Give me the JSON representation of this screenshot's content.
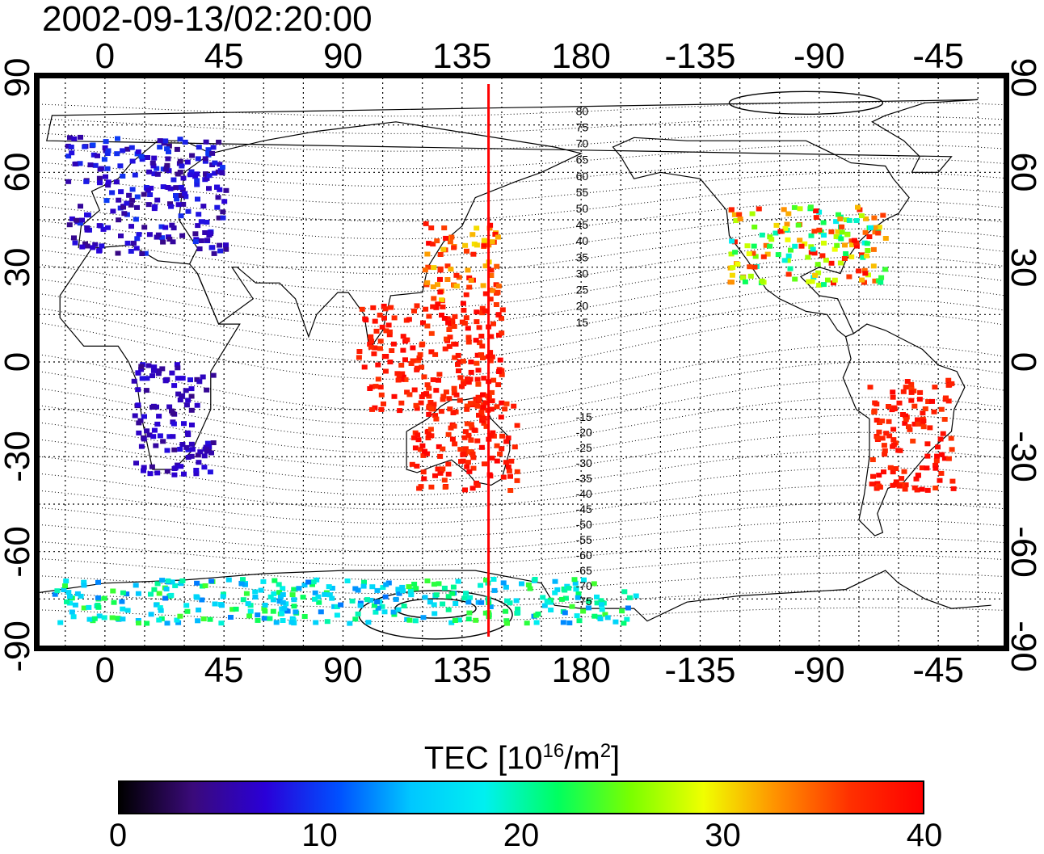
{
  "title": "2002-09-13/02:20:00",
  "map": {
    "lon_ticks_top": [
      "0",
      "45",
      "90",
      "135",
      "180",
      "-135",
      "-90",
      "-45"
    ],
    "lon_ticks_bottom": [
      "0",
      "45",
      "90",
      "135",
      "180",
      "-135",
      "-90",
      "-45"
    ],
    "lat_ticks_left": [
      "90",
      "60",
      "30",
      "0",
      "-30",
      "-60",
      "-90"
    ],
    "lat_ticks_right": [
      "90",
      "60",
      "30",
      "0",
      "-30",
      "-60",
      "-90"
    ],
    "lon_range": [
      -25,
      340
    ],
    "lat_range": [
      -90,
      90
    ],
    "grid": true,
    "grid_step_deg": 15,
    "terminator_longitude": 145,
    "terminator_color": "#ff0000",
    "mlat_labels_north": [
      "80",
      "75",
      "70",
      "65",
      "60",
      "55",
      "50",
      "45",
      "40",
      "35",
      "30",
      "25",
      "20",
      "15"
    ],
    "mlat_labels_south": [
      "-15",
      "-20",
      "-25",
      "-30",
      "-35",
      "-40",
      "-45",
      "-50",
      "-55",
      "-60",
      "-65",
      "-70",
      "-75"
    ],
    "tec_regions": [
      {
        "name": "europe",
        "lon": [
          -15,
          45
        ],
        "lat": [
          35,
          72
        ],
        "tec_low": 4,
        "tec_high": 10
      },
      {
        "name": "north-america",
        "lon": [
          -125,
          -65
        ],
        "lat": [
          25,
          50
        ],
        "tec_low": 18,
        "tec_high": 40
      },
      {
        "name": "east-asia",
        "lon": [
          120,
          148
        ],
        "lat": [
          20,
          45
        ],
        "tec_low": 30,
        "tec_high": 40
      },
      {
        "name": "southeast-asia",
        "lon": [
          95,
          150
        ],
        "lat": [
          -15,
          20
        ],
        "tec_low": 36,
        "tec_high": 40
      },
      {
        "name": "australia",
        "lon": [
          115,
          155
        ],
        "lat": [
          -40,
          -10
        ],
        "tec_low": 36,
        "tec_high": 40
      },
      {
        "name": "south-america",
        "lon": [
          -72,
          -40
        ],
        "lat": [
          -40,
          -5
        ],
        "tec_low": 36,
        "tec_high": 40
      },
      {
        "name": "antarctica",
        "lon": [
          -20,
          200
        ],
        "lat": [
          -82,
          -68
        ],
        "tec_low": 12,
        "tec_high": 24
      },
      {
        "name": "southern-africa",
        "lon": [
          10,
          40
        ],
        "lat": [
          -35,
          0
        ],
        "tec_low": 4,
        "tec_high": 8
      }
    ]
  },
  "colorbar": {
    "title": "TEC  [10",
    "title_sup1": "16",
    "title_mid": "/m",
    "title_sup2": "2",
    "title_end": "]",
    "min": 0,
    "max": 40,
    "ticks": [
      "0",
      "10",
      "20",
      "30",
      "40"
    ],
    "colors": [
      "#000000",
      "#3a0a7a",
      "#2a00d8",
      "#0050ff",
      "#00c8ff",
      "#00f0f0",
      "#00ff60",
      "#7aff00",
      "#f0ff00",
      "#ff9000",
      "#ff3000",
      "#ff0000"
    ]
  }
}
